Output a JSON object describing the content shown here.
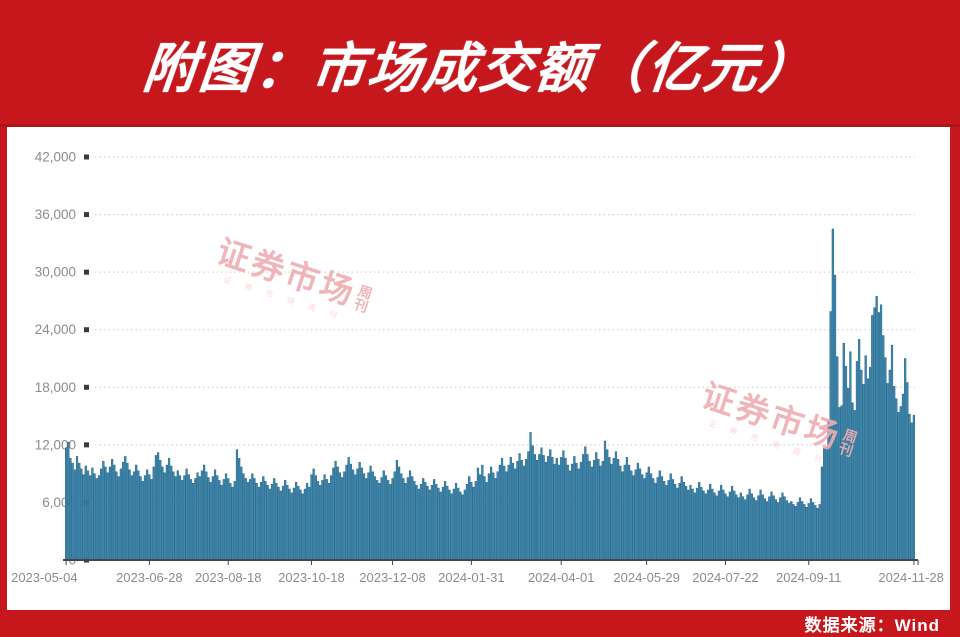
{
  "header": {
    "title": "附图：市场成交额（亿元）"
  },
  "footer": {
    "source_label": "数据来源：Wind"
  },
  "watermark": {
    "main": "证券市场",
    "suffix_top": "周",
    "suffix_bottom": "刊",
    "subtext": "证 券 市 场 周 刊"
  },
  "colors": {
    "brand_red": "#c5171c",
    "bar_fill": "#3d87ae",
    "bar_stroke": "#1f5d7f",
    "grid": "#c9c9c9",
    "axis": "#454545",
    "tick_label": "#8c8c8c",
    "tick_square": "#3a3a3a",
    "watermark_pink": "#efaeb2"
  },
  "chart_data": {
    "type": "bar",
    "title": "市场成交额（亿元）",
    "xlabel": "",
    "ylabel": "",
    "legend": "none",
    "grid": "dotted-horizontal",
    "ylim": [
      0,
      42000
    ],
    "yticks": [
      0,
      6000,
      12000,
      18000,
      24000,
      30000,
      36000,
      42000
    ],
    "ytick_labels": [
      "0",
      "6,000",
      "12,000",
      "18,000",
      "24,000",
      "30,000",
      "36,000",
      "42,000"
    ],
    "x_tick_labels": [
      "2023-05-04",
      "2023-06-28",
      "2023-08-18",
      "2023-10-18",
      "2023-12-08",
      "2024-01-31",
      "2024-04-01",
      "2024-05-29",
      "2024-07-22",
      "2024-09-11",
      "2024-11-28"
    ],
    "x_tick_indices": [
      0,
      38,
      74,
      112,
      149,
      185,
      226,
      265,
      301,
      339,
      387
    ],
    "values": [
      11700,
      12300,
      10600,
      10100,
      9400,
      10800,
      10100,
      9500,
      8900,
      9800,
      9300,
      8800,
      9600,
      9000,
      8500,
      8800,
      9500,
      10300,
      9700,
      9100,
      9700,
      10500,
      9900,
      9200,
      8700,
      9500,
      10200,
      10800,
      10100,
      9400,
      8800,
      9200,
      9900,
      9300,
      8700,
      8200,
      8800,
      9400,
      8900,
      8400,
      9700,
      10900,
      11200,
      10400,
      9700,
      9100,
      9900,
      10600,
      9800,
      9200,
      8700,
      9300,
      8800,
      8300,
      8800,
      9500,
      8900,
      8400,
      8000,
      8500,
      9100,
      8700,
      9300,
      9900,
      9200,
      8600,
      8100,
      8700,
      9400,
      8800,
      8300,
      7800,
      8400,
      9000,
      8500,
      8000,
      7600,
      8200,
      11500,
      10600,
      9700,
      9000,
      8500,
      8100,
      8400,
      9000,
      8500,
      8000,
      7600,
      8100,
      8700,
      8200,
      7800,
      7400,
      7900,
      8500,
      8000,
      7600,
      7200,
      7700,
      8300,
      7800,
      7400,
      7000,
      7500,
      8100,
      7700,
      7300,
      6900,
      7400,
      8000,
      7600,
      8900,
      9500,
      8800,
      8200,
      7800,
      8300,
      8900,
      8400,
      8000,
      8800,
      9600,
      10300,
      9700,
      9100,
      8600,
      9200,
      9900,
      10700,
      10000,
      9400,
      8900,
      9500,
      10200,
      9600,
      9000,
      8500,
      9100,
      9800,
      9200,
      8700,
      8300,
      8000,
      8600,
      9300,
      8800,
      8300,
      7900,
      8500,
      9200,
      10400,
      9700,
      9000,
      8500,
      8000,
      8600,
      9300,
      8700,
      8200,
      7800,
      7400,
      7900,
      8500,
      8100,
      7700,
      7300,
      7800,
      8400,
      7900,
      7500,
      7100,
      7600,
      8200,
      7700,
      7300,
      6900,
      7400,
      8000,
      7500,
      7100,
      6800,
      7300,
      7900,
      8700,
      8100,
      7600,
      8200,
      9600,
      8900,
      9900,
      8700,
      8100,
      9000,
      9700,
      9100,
      8500,
      9200,
      9900,
      10600,
      9800,
      9200,
      9900,
      10700,
      10100,
      9500,
      10300,
      11100,
      10400,
      9800,
      10500,
      11300,
      13300,
      11900,
      11000,
      10400,
      11000,
      11700,
      10900,
      10200,
      10800,
      11500,
      10700,
      10000,
      10600,
      9900,
      10700,
      11400,
      10600,
      9900,
      9300,
      10000,
      10800,
      10100,
      9500,
      10200,
      11000,
      11800,
      11000,
      10300,
      9700,
      10400,
      11200,
      10500,
      9800,
      10300,
      12400,
      11500,
      10700,
      10000,
      10600,
      11300,
      10500,
      9800,
      9200,
      9900,
      10700,
      9900,
      9300,
      8800,
      9400,
      10100,
      9500,
      8900,
      8500,
      9100,
      9700,
      9000,
      8500,
      8000,
      8600,
      9300,
      8700,
      8200,
      7800,
      8300,
      9000,
      8400,
      7900,
      7500,
      8000,
      8700,
      8100,
      7700,
      7300,
      7800,
      7400,
      7000,
      7500,
      8100,
      7600,
      7200,
      6900,
      7300,
      7900,
      7400,
      7000,
      6700,
      7200,
      7800,
      7300,
      6900,
      6600,
      7100,
      7700,
      7200,
      6800,
      6500,
      7000,
      6600,
      6300,
      6800,
      7400,
      6900,
      6500,
      6200,
      6700,
      7300,
      6800,
      6400,
      6100,
      6600,
      7100,
      6700,
      6300,
      6000,
      6500,
      7000,
      6600,
      6200,
      5900,
      6100,
      5800,
      5600,
      6000,
      6500,
      6100,
      5800,
      5500,
      5900,
      6400,
      6000,
      5700,
      5400,
      5800,
      9700,
      11600,
      11700,
      14600,
      25900,
      34500,
      29700,
      21200,
      15900,
      16100,
      22600,
      20200,
      17900,
      21700,
      16400,
      15600,
      20700,
      23000,
      19800,
      18300,
      21300,
      18900,
      20100,
      25500,
      26300,
      27500,
      25800,
      26600,
      23400,
      21100,
      18400,
      19800,
      22400,
      18100,
      16800,
      15400,
      16000,
      17300,
      21000,
      18500,
      15200,
      14300,
      15100
    ]
  }
}
